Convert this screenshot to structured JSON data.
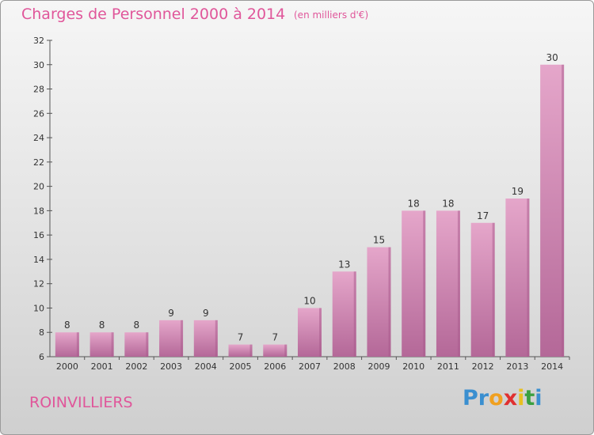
{
  "header": {
    "title": "Charges de Personnel 2000 à 2014",
    "subtitle": "(en milliers d'€)"
  },
  "footer": {
    "place": "ROINVILLIERS",
    "logo": [
      "P",
      "r",
      "o",
      "x",
      "i",
      "t",
      "i"
    ]
  },
  "colors": {
    "bar_top": "#e5a6ca",
    "bar_bottom": "#b46898",
    "bar_side": "#a85a8c",
    "accent": "#e0569a",
    "logo": [
      "#3a8fd0",
      "#3a8fd0",
      "#f0a020",
      "#e03030",
      "#e8c020",
      "#3aa040",
      "#3a8fd0"
    ]
  },
  "chart_data": {
    "type": "bar",
    "title": "Charges de Personnel 2000 à 2014",
    "subtitle": "(en milliers d'€)",
    "categories": [
      "2000",
      "2001",
      "2002",
      "2003",
      "2004",
      "2005",
      "2006",
      "2007",
      "2008",
      "2009",
      "2010",
      "2011",
      "2012",
      "2013",
      "2014"
    ],
    "values": [
      8,
      8,
      8,
      9,
      9,
      7,
      7,
      10,
      13,
      15,
      18,
      18,
      17,
      19,
      30
    ],
    "ylim": [
      6,
      32
    ],
    "yticks": [
      6,
      8,
      10,
      12,
      14,
      16,
      18,
      20,
      22,
      24,
      26,
      28,
      30,
      32
    ],
    "grid": false,
    "legend": "none"
  }
}
